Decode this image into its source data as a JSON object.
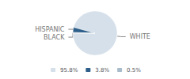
{
  "chart_data": {
    "type": "pie",
    "categories": [
      "WHITE",
      "HISPANIC",
      "BLACK"
    ],
    "values": [
      95.8,
      3.8,
      0.5
    ],
    "value_labels": [
      "95.8%",
      "3.8%",
      "0.5%"
    ],
    "colors": [
      "#d6e0ea",
      "#2e5f8a",
      "#a8bccb"
    ],
    "legend": "bottom"
  }
}
